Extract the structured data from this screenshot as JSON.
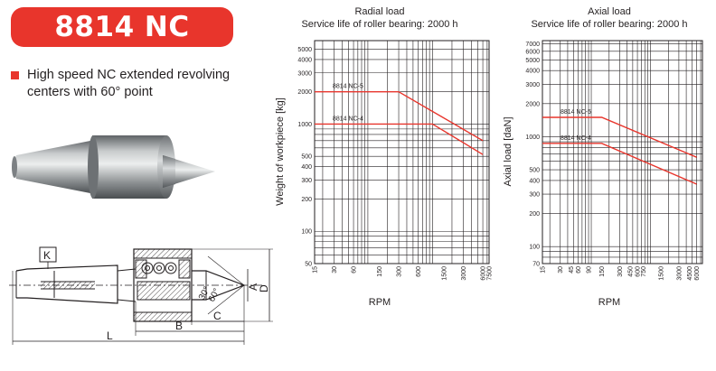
{
  "product": {
    "title": "8814 NC",
    "description": "High speed NC extended revolving centers with 60° point"
  },
  "drawing": {
    "labels": {
      "K": "K",
      "L": "L",
      "B": "B",
      "C": "C",
      "D": "D",
      "A": "A",
      "angle30": "30°",
      "angle60": "60°"
    }
  },
  "colors": {
    "accent": "#e8352c",
    "grid": "#231f20"
  },
  "chart_data": [
    {
      "type": "line",
      "title": "Radial load",
      "subtitle": "Service life of roller bearing: 2000 h",
      "xlabel": "RPM",
      "ylabel": "Weight of workpiece [kg]",
      "x_scale": "log",
      "y_scale": "log",
      "xlim": [
        15,
        7500
      ],
      "ylim": [
        50,
        6000
      ],
      "x_ticks": [
        15,
        30,
        60,
        150,
        300,
        600,
        1500,
        3000,
        6000,
        7500
      ],
      "x_tick_labels": [
        "15",
        "30",
        "60",
        "150",
        "300",
        "600",
        "1500",
        "3000",
        "6000",
        "7500"
      ],
      "y_ticks": [
        50,
        100,
        200,
        300,
        400,
        500,
        1000,
        2000,
        3000,
        4000,
        5000
      ],
      "y_tick_labels": [
        "50",
        "100",
        "200",
        "300",
        "400",
        "500",
        "1000",
        "2000",
        "3000",
        "4000",
        "5000"
      ],
      "series": [
        {
          "name": "8814 NC-5",
          "x": [
            15,
            300,
            6000
          ],
          "y": [
            2000,
            2000,
            700
          ]
        },
        {
          "name": "8814 NC-4",
          "x": [
            15,
            1000,
            6000
          ],
          "y": [
            1000,
            1000,
            520
          ]
        }
      ]
    },
    {
      "type": "line",
      "title": "Axial load",
      "subtitle": "Service life of roller bearing: 2000 h",
      "xlabel": "RPM",
      "ylabel": "Axial load [daN]",
      "x_scale": "log",
      "y_scale": "log",
      "xlim": [
        15,
        7500
      ],
      "ylim": [
        70,
        7500
      ],
      "x_ticks": [
        15,
        30,
        45,
        60,
        90,
        150,
        300,
        450,
        600,
        750,
        1500,
        3000,
        4500,
        6000
      ],
      "x_tick_labels": [
        "15",
        "30",
        "45",
        "60",
        "90",
        "150",
        "300",
        "450",
        "600",
        "750",
        "1500",
        "3000",
        "4500",
        "6000"
      ],
      "y_ticks": [
        70,
        100,
        200,
        300,
        400,
        500,
        1000,
        2000,
        3000,
        4000,
        5000,
        6000,
        7000
      ],
      "y_tick_labels": [
        "70",
        "100",
        "200",
        "300",
        "400",
        "500",
        "1000",
        "2000",
        "3000",
        "4000",
        "5000",
        "6000",
        "7000"
      ],
      "series": [
        {
          "name": "8814 NC-5",
          "x": [
            15,
            150,
            6000
          ],
          "y": [
            1500,
            1500,
            650
          ]
        },
        {
          "name": "8814 NC-4",
          "x": [
            15,
            150,
            6000
          ],
          "y": [
            870,
            870,
            370
          ]
        }
      ]
    }
  ]
}
